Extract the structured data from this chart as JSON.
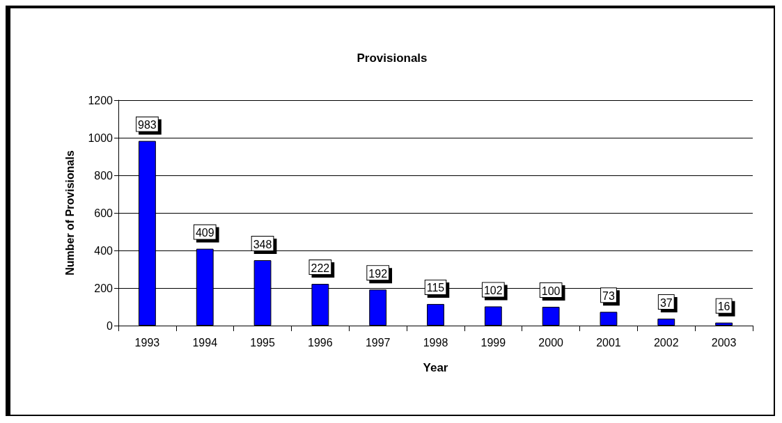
{
  "chart_data": {
    "type": "bar",
    "title": "Provisionals",
    "xlabel": "Year",
    "ylabel": "Number of Provisionals",
    "categories": [
      "1993",
      "1994",
      "1995",
      "1996",
      "1997",
      "1998",
      "1999",
      "2000",
      "2001",
      "2002",
      "2003"
    ],
    "values": [
      983,
      409,
      348,
      222,
      192,
      115,
      102,
      100,
      73,
      37,
      16
    ],
    "color": "#0000ff",
    "ylim": [
      0,
      1200
    ],
    "yticks": [
      0,
      200,
      400,
      600,
      800,
      1000,
      1200
    ],
    "grid": "y",
    "data_labels": true
  }
}
